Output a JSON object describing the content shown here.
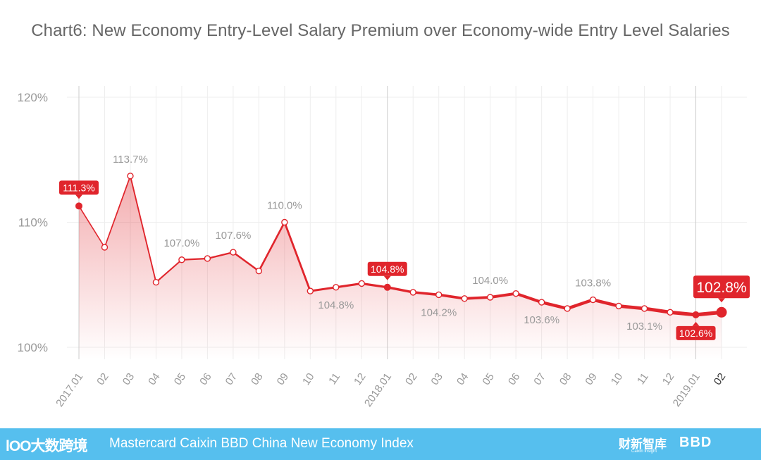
{
  "title": "Chart6: New Economy Entry-Level Salary Premium over Economy-wide Entry Level Salaries",
  "colors": {
    "line": "#e0252c",
    "grid": "#eeeeee",
    "axis_text": "#999999",
    "footer": "#56bfee"
  },
  "chart_data": {
    "type": "area",
    "title": "Chart6: New Economy Entry-Level Salary Premium over Economy-wide Entry Level Salaries",
    "xlabel": "",
    "ylabel": "",
    "ylim": [
      98,
      120
    ],
    "yticks": [
      "100%",
      "110%",
      "120%"
    ],
    "ytick_values": [
      100,
      110,
      120
    ],
    "grid": true,
    "categories": [
      "2017.01",
      "02",
      "03",
      "04",
      "05",
      "06",
      "07",
      "08",
      "09",
      "10",
      "11",
      "12",
      "2018.01",
      "02",
      "03",
      "04",
      "05",
      "06",
      "07",
      "08",
      "09",
      "10",
      "11",
      "12",
      "2019.01",
      "02"
    ],
    "values": [
      111.3,
      108.0,
      113.7,
      105.2,
      107.0,
      107.1,
      107.6,
      106.1,
      110.0,
      104.5,
      104.8,
      105.1,
      104.8,
      104.4,
      104.2,
      103.9,
      104.0,
      104.3,
      103.6,
      103.1,
      103.8,
      103.3,
      103.1,
      102.8,
      102.6,
      102.8
    ],
    "separator_categories": [
      0,
      12,
      24
    ],
    "labels": [
      {
        "index": 0,
        "text": "111.3%",
        "style": "badge",
        "pos": "above"
      },
      {
        "index": 2,
        "text": "113.7%",
        "style": "plain",
        "pos": "above"
      },
      {
        "index": 4,
        "text": "107.0%",
        "style": "plain",
        "pos": "above"
      },
      {
        "index": 6,
        "text": "107.6%",
        "style": "plain",
        "pos": "above"
      },
      {
        "index": 8,
        "text": "110.0%",
        "style": "plain",
        "pos": "above"
      },
      {
        "index": 10,
        "text": "104.8%",
        "style": "plain",
        "pos": "below"
      },
      {
        "index": 12,
        "text": "104.8%",
        "style": "badge",
        "pos": "above"
      },
      {
        "index": 14,
        "text": "104.2%",
        "style": "plain",
        "pos": "below"
      },
      {
        "index": 16,
        "text": "104.0%",
        "style": "plain",
        "pos": "above"
      },
      {
        "index": 18,
        "text": "103.6%",
        "style": "plain",
        "pos": "below"
      },
      {
        "index": 20,
        "text": "103.8%",
        "style": "plain",
        "pos": "above"
      },
      {
        "index": 22,
        "text": "103.1%",
        "style": "plain",
        "pos": "below"
      },
      {
        "index": 24,
        "text": "102.6%",
        "style": "badge",
        "pos": "below"
      },
      {
        "index": 25,
        "text": "102.8%",
        "style": "badge-large",
        "pos": "above"
      }
    ]
  },
  "footer": {
    "logo_left": "lOO大数跨境",
    "text": "Mastercard Caixin BBD China New Economy Index",
    "logo_caixin": "财新智库",
    "logo_caixin_sub": "Caixin Insight",
    "logo_bbd": "BBD"
  }
}
